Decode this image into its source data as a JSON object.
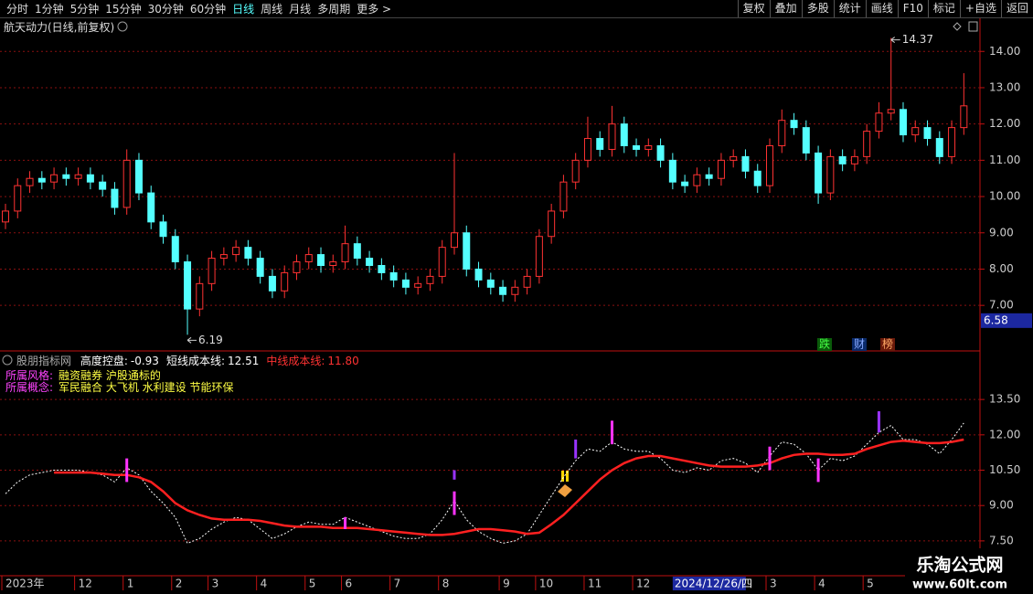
{
  "toolbar": {
    "left": [
      "分时",
      "1分钟",
      "5分钟",
      "15分钟",
      "30分钟",
      "60分钟",
      "日线",
      "周线",
      "月线",
      "多周期",
      "更多 >"
    ],
    "active_index": 6,
    "right": [
      "复权",
      "叠加",
      "多股",
      "统计",
      "画线",
      "F10",
      "标记",
      "+自选",
      "返回"
    ]
  },
  "badges": [
    "跌",
    "财",
    "榜"
  ],
  "info": [
    {
      "label": "所属风格:",
      "value": "融资融券 沪股通标的"
    },
    {
      "label": "所属概念:",
      "value": "军民融合 大飞机 水利建设 节能环保"
    }
  ],
  "watermark": {
    "title": "乐淘公式网",
    "url": "www.60lt.com"
  },
  "chart_data": [
    {
      "type": "candlestick",
      "title": "航天动力(日线,前复权)",
      "up_color": "#ff3232",
      "down_color": "#54ffff",
      "grid": true,
      "ylim": [
        5.77,
        14.46
      ],
      "yticks": [
        {
          "value": 7,
          "label": "7.00"
        },
        {
          "value": 8,
          "label": "8.00"
        },
        {
          "value": 9,
          "label": "9.00"
        },
        {
          "value": 10,
          "label": "10.00"
        },
        {
          "value": 11,
          "label": "11.00"
        },
        {
          "value": 12,
          "label": "12.00"
        },
        {
          "value": 13,
          "label": "13.00"
        },
        {
          "value": 14,
          "label": "14.00"
        }
      ],
      "open": [
        9.3,
        9.6,
        10.3,
        10.5,
        10.4,
        10.6,
        10.5,
        10.6,
        10.4,
        10.2,
        9.7,
        11.0,
        10.1,
        9.3,
        8.9,
        8.2,
        6.9,
        7.6,
        8.3,
        8.4,
        8.6,
        8.3,
        7.8,
        7.4,
        7.9,
        8.2,
        8.4,
        8.1,
        8.2,
        8.7,
        8.3,
        8.1,
        7.9,
        7.7,
        7.5,
        7.6,
        7.8,
        8.6,
        9.0,
        8.0,
        7.7,
        7.5,
        7.3,
        7.5,
        7.8,
        8.9,
        9.6,
        10.4,
        11.0,
        11.6,
        11.3,
        12.0,
        11.4,
        11.3,
        11.4,
        11.0,
        10.4,
        10.3,
        10.6,
        10.5,
        11.0,
        11.1,
        10.7,
        10.3,
        11.4,
        12.1,
        11.9,
        11.2,
        10.1,
        11.1,
        10.9,
        11.1,
        11.8,
        12.3,
        12.4,
        11.7,
        11.9,
        11.6,
        11.1,
        11.9
      ],
      "high": [
        9.8,
        10.5,
        10.7,
        10.7,
        10.8,
        10.8,
        10.8,
        10.8,
        10.6,
        10.4,
        11.3,
        11.2,
        10.3,
        9.5,
        9.1,
        8.4,
        7.8,
        8.5,
        8.6,
        8.8,
        8.8,
        8.5,
        8.0,
        8.1,
        8.4,
        8.6,
        8.6,
        8.4,
        9.2,
        8.9,
        8.5,
        8.3,
        8.1,
        7.9,
        7.8,
        8.0,
        8.8,
        11.2,
        9.2,
        8.2,
        7.9,
        7.7,
        7.7,
        8.0,
        9.1,
        9.8,
        10.6,
        11.2,
        12.2,
        11.8,
        12.5,
        12.2,
        11.6,
        11.6,
        11.6,
        11.2,
        10.6,
        10.8,
        10.8,
        11.2,
        11.3,
        11.3,
        10.9,
        11.6,
        12.4,
        12.3,
        12.1,
        11.4,
        11.3,
        11.3,
        11.3,
        12.0,
        12.6,
        14.37,
        12.6,
        12.1,
        12.1,
        11.8,
        12.1,
        13.4
      ],
      "low": [
        9.1,
        9.4,
        10.1,
        10.2,
        10.2,
        10.3,
        10.3,
        10.2,
        10.0,
        9.5,
        9.5,
        9.9,
        9.1,
        8.7,
        8.0,
        6.19,
        6.7,
        7.4,
        8.1,
        8.2,
        8.1,
        7.6,
        7.2,
        7.2,
        7.7,
        8.0,
        7.9,
        7.9,
        8.0,
        8.1,
        7.9,
        7.7,
        7.5,
        7.3,
        7.3,
        7.4,
        7.6,
        8.4,
        7.8,
        7.5,
        7.3,
        7.1,
        7.1,
        7.3,
        7.6,
        8.7,
        9.4,
        10.2,
        10.8,
        11.1,
        11.1,
        11.2,
        11.1,
        11.1,
        10.8,
        10.2,
        10.1,
        10.1,
        10.3,
        10.3,
        10.8,
        10.5,
        10.1,
        10.1,
        11.2,
        11.7,
        11.0,
        9.8,
        9.9,
        10.7,
        10.7,
        10.9,
        11.6,
        12.1,
        11.5,
        11.5,
        11.4,
        10.9,
        10.9,
        11.7
      ],
      "close": [
        9.6,
        10.3,
        10.5,
        10.4,
        10.6,
        10.5,
        10.6,
        10.4,
        10.2,
        9.7,
        11.0,
        10.1,
        9.3,
        8.9,
        8.2,
        6.9,
        7.6,
        8.3,
        8.4,
        8.6,
        8.3,
        7.8,
        7.4,
        7.9,
        8.2,
        8.4,
        8.1,
        8.2,
        8.7,
        8.3,
        8.1,
        7.9,
        7.7,
        7.5,
        7.6,
        7.8,
        8.6,
        9.0,
        8.0,
        7.7,
        7.5,
        7.3,
        7.5,
        7.8,
        8.9,
        9.6,
        10.4,
        11.0,
        11.6,
        11.3,
        12.0,
        11.4,
        11.3,
        11.4,
        11.0,
        10.4,
        10.3,
        10.6,
        10.5,
        11.0,
        11.1,
        10.7,
        10.3,
        11.4,
        12.1,
        11.9,
        11.2,
        10.1,
        11.1,
        10.9,
        11.1,
        11.8,
        12.3,
        12.4,
        11.7,
        11.9,
        11.6,
        11.1,
        11.9,
        12.5
      ],
      "crosshair": {
        "value": 6.58,
        "x_index": 55,
        "x_label": "2024/12/26/四"
      }
    },
    {
      "type": "line",
      "title": "股朋指标网",
      "grid": true,
      "readouts": [
        {
          "label": "高度控盘:",
          "value": -0.93,
          "color": "#ffffff"
        },
        {
          "label": "短线成本线:",
          "value": 12.51,
          "color": "#ffffff"
        },
        {
          "label": "中线成本线:",
          "value": 11.8,
          "value_label": "11.80",
          "color": "#ff3232"
        }
      ],
      "ylim": [
        6.1,
        14.94
      ],
      "yticks": [
        {
          "value": 7.5,
          "label": "7.50"
        },
        {
          "value": 9,
          "label": "9.00"
        },
        {
          "value": 10.5,
          "label": "10.50"
        },
        {
          "value": 12,
          "label": "12.00"
        },
        {
          "value": 13.5,
          "label": "13.50"
        }
      ],
      "xticks": [
        {
          "value": 0,
          "label": "2023年"
        },
        {
          "value": 6,
          "label": "12"
        },
        {
          "value": 10,
          "label": "1"
        },
        {
          "value": 14,
          "label": "2"
        },
        {
          "value": 17,
          "label": "3"
        },
        {
          "value": 21,
          "label": "4"
        },
        {
          "value": 25,
          "label": "5"
        },
        {
          "value": 28,
          "label": "6"
        },
        {
          "value": 32,
          "label": "7"
        },
        {
          "value": 36,
          "label": "8"
        },
        {
          "value": 41,
          "label": "9"
        },
        {
          "value": 44,
          "label": "10"
        },
        {
          "value": 48,
          "label": "11"
        },
        {
          "value": 52,
          "label": "12"
        },
        {
          "value": 63,
          "label": "3"
        },
        {
          "value": 67,
          "label": "4"
        },
        {
          "value": 71,
          "label": "5"
        }
      ],
      "series": [
        {
          "color": "#ffffff",
          "dashed": true,
          "values": [
            9.5,
            10.0,
            10.3,
            10.4,
            10.5,
            10.5,
            10.5,
            10.4,
            10.3,
            10.0,
            10.6,
            10.3,
            9.6,
            9.1,
            8.5,
            7.4,
            7.6,
            8.0,
            8.3,
            8.5,
            8.4,
            8.0,
            7.6,
            7.8,
            8.1,
            8.3,
            8.2,
            8.2,
            8.5,
            8.3,
            8.1,
            7.9,
            7.7,
            7.6,
            7.6,
            7.8,
            8.4,
            9.2,
            8.4,
            7.9,
            7.6,
            7.4,
            7.5,
            7.8,
            8.6,
            9.4,
            10.2,
            10.9,
            11.4,
            11.3,
            11.7,
            11.4,
            11.3,
            11.3,
            11.0,
            10.5,
            10.4,
            10.6,
            10.5,
            10.9,
            11.0,
            10.8,
            10.4,
            11.1,
            11.7,
            11.6,
            11.2,
            10.5,
            11.0,
            10.9,
            11.1,
            11.6,
            12.1,
            12.4,
            11.8,
            11.8,
            11.6,
            11.2,
            11.8,
            12.5
          ]
        },
        {
          "color": "#ff2020",
          "dashed": false,
          "values": [
            null,
            null,
            null,
            null,
            10.4,
            10.4,
            10.4,
            10.4,
            10.35,
            10.3,
            10.3,
            10.2,
            10.0,
            9.6,
            9.1,
            8.8,
            8.6,
            8.45,
            8.4,
            8.4,
            8.4,
            8.35,
            8.25,
            8.15,
            8.1,
            8.1,
            8.1,
            8.05,
            8.05,
            8.05,
            8.0,
            7.95,
            7.9,
            7.85,
            7.8,
            7.75,
            7.75,
            7.8,
            7.9,
            8.0,
            8.0,
            7.95,
            7.9,
            7.8,
            7.85,
            8.2,
            8.6,
            9.1,
            9.6,
            10.1,
            10.5,
            10.8,
            11.0,
            11.1,
            11.1,
            11.0,
            10.9,
            10.8,
            10.7,
            10.65,
            10.65,
            10.65,
            10.7,
            10.8,
            11.0,
            11.15,
            11.2,
            11.2,
            11.15,
            11.15,
            11.2,
            11.4,
            11.55,
            11.7,
            11.75,
            11.7,
            11.65,
            11.65,
            11.7,
            11.8
          ]
        }
      ],
      "signals": [
        {
          "x": 10,
          "low": 10.0,
          "high": 11.0,
          "color": "#ff33ff"
        },
        {
          "x": 28,
          "low": 8.0,
          "high": 8.5,
          "color": "#ff33ff"
        },
        {
          "x": 37,
          "low": 8.6,
          "high": 9.6,
          "color": "#ff33ff"
        },
        {
          "x": 37,
          "low": 10.1,
          "high": 10.5,
          "color": "#9933ff"
        },
        {
          "x": 47,
          "low": 11.0,
          "high": 11.8,
          "color": "#9933ff"
        },
        {
          "x": 50,
          "low": 11.6,
          "high": 12.6,
          "color": "#ff33ff"
        },
        {
          "x": 63,
          "low": 10.5,
          "high": 11.5,
          "color": "#ff33ff"
        },
        {
          "x": 67,
          "low": 10.0,
          "high": 11.0,
          "color": "#ff33ff"
        },
        {
          "x": 72,
          "low": 12.1,
          "high": 13.0,
          "color": "#9933ff"
        }
      ]
    }
  ]
}
